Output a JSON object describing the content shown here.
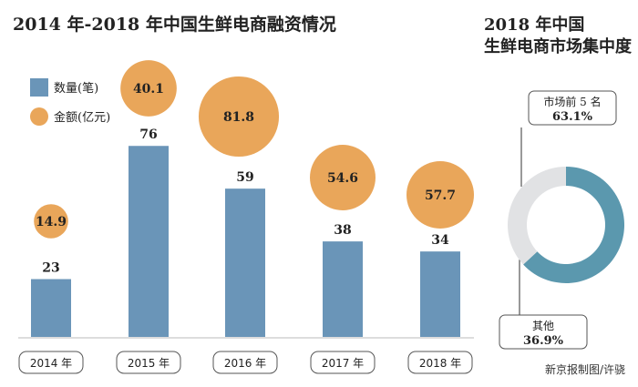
{
  "chart_data": [
    {
      "type": "bar",
      "title": "2014 年-2018 年中国生鲜电商融资情况",
      "categories": [
        "2014 年",
        "2015 年",
        "2016 年",
        "2017 年",
        "2018 年"
      ],
      "series": [
        {
          "name": "数量(笔)",
          "values": [
            23,
            76,
            59,
            38,
            34
          ],
          "color": "#6a95b8"
        },
        {
          "name": "金额(亿元)",
          "values": [
            14.9,
            40.1,
            81.8,
            54.6,
            57.7
          ],
          "color": "#e9a65a",
          "mark": "bubble"
        }
      ],
      "value_labels": {
        "count": [
          "23",
          "76",
          "59",
          "38",
          "34"
        ],
        "amount": [
          "14.9",
          "40.1",
          "81.8",
          "54.6",
          "57.7"
        ]
      },
      "legend_placement": "top-left",
      "grid": false
    },
    {
      "type": "pie",
      "donut": true,
      "title_lines": [
        "2018 年中国",
        "生鲜电商市场集中度"
      ],
      "slices": [
        {
          "label": "市场前 5 名",
          "value": 63.1,
          "value_label": "63.1%",
          "color": "#5b98ae"
        },
        {
          "label": "其他",
          "value": 36.9,
          "value_label": "36.9%",
          "color": "#e1e2e4"
        }
      ]
    }
  ],
  "credit": "新京报制图/许骁"
}
